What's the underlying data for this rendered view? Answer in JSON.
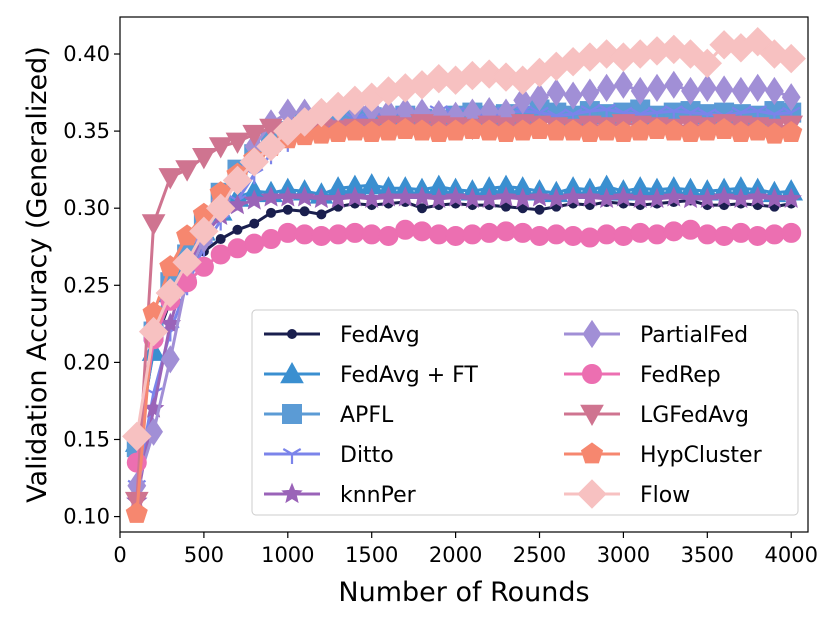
{
  "chart_data": {
    "type": "line",
    "title": "",
    "xlabel": "Number of Rounds",
    "ylabel": "Validation Accuracy (Generalized)",
    "xlim": [
      0,
      4100
    ],
    "ylim": [
      0.09,
      0.424
    ],
    "xticks": [
      0,
      500,
      1000,
      1500,
      2000,
      2500,
      3000,
      3500,
      4000
    ],
    "yticks": [
      0.1,
      0.15,
      0.2,
      0.25,
      0.3,
      0.35,
      0.4
    ],
    "xtick_labels": [
      "0",
      "500",
      "1000",
      "1500",
      "2000",
      "2500",
      "3000",
      "3500",
      "4000"
    ],
    "ytick_labels": [
      "0.10",
      "0.15",
      "0.20",
      "0.25",
      "0.30",
      "0.35",
      "0.40"
    ],
    "legend_position": "lower-right",
    "x": [
      100,
      200,
      300,
      400,
      500,
      600,
      700,
      800,
      900,
      1000,
      1100,
      1200,
      1300,
      1400,
      1500,
      1600,
      1700,
      1800,
      1900,
      2000,
      2100,
      2200,
      2300,
      2400,
      2500,
      2600,
      2700,
      2800,
      2900,
      3000,
      3100,
      3200,
      3300,
      3400,
      3500,
      3600,
      3700,
      3800,
      3900,
      4000
    ],
    "series": [
      {
        "name": "FedAvg",
        "color": "#1a1f4e",
        "marker": "circle",
        "values": [
          0.14,
          0.21,
          0.24,
          0.262,
          0.272,
          0.28,
          0.286,
          0.29,
          0.297,
          0.299,
          0.298,
          0.296,
          0.301,
          0.303,
          0.302,
          0.303,
          0.304,
          0.3,
          0.302,
          0.303,
          0.302,
          0.302,
          0.301,
          0.3,
          0.299,
          0.301,
          0.303,
          0.302,
          0.304,
          0.303,
          0.302,
          0.303,
          0.304,
          0.305,
          0.302,
          0.302,
          0.303,
          0.302,
          0.301,
          0.303
        ]
      },
      {
        "name": "FedAvg + FT",
        "color": "#3a8fd0",
        "marker": "triangle-up",
        "values": [
          0.148,
          0.207,
          0.245,
          0.268,
          0.285,
          0.298,
          0.307,
          0.311,
          0.31,
          0.312,
          0.311,
          0.309,
          0.313,
          0.314,
          0.315,
          0.313,
          0.313,
          0.312,
          0.314,
          0.312,
          0.311,
          0.313,
          0.314,
          0.313,
          0.311,
          0.31,
          0.313,
          0.312,
          0.314,
          0.311,
          0.313,
          0.312,
          0.313,
          0.312,
          0.311,
          0.312,
          0.313,
          0.312,
          0.31,
          0.311
        ]
      },
      {
        "name": "APFL",
        "color": "#5b9bd5",
        "marker": "square",
        "values": [
          0.145,
          0.22,
          0.252,
          0.27,
          0.292,
          0.31,
          0.325,
          0.335,
          0.343,
          0.35,
          0.355,
          0.357,
          0.357,
          0.358,
          0.359,
          0.357,
          0.36,
          0.358,
          0.357,
          0.36,
          0.362,
          0.36,
          0.361,
          0.36,
          0.364,
          0.362,
          0.36,
          0.363,
          0.361,
          0.362,
          0.364,
          0.36,
          0.362,
          0.363,
          0.361,
          0.362,
          0.361,
          0.36,
          0.363,
          0.362
        ]
      },
      {
        "name": "Ditto",
        "color": "#7b84ea",
        "marker": "tri-down",
        "values": [
          0.12,
          0.18,
          0.22,
          0.25,
          0.275,
          0.292,
          0.305,
          0.322,
          0.335,
          0.343,
          0.35,
          0.352,
          0.355,
          0.358,
          0.36,
          0.361,
          0.362,
          0.36,
          0.363,
          0.362,
          0.361,
          0.36,
          0.362,
          0.363,
          0.362,
          0.36,
          0.361,
          0.363,
          0.364,
          0.362,
          0.361,
          0.362,
          0.363,
          0.362,
          0.361,
          0.36,
          0.362,
          0.363,
          0.361,
          0.362
        ]
      },
      {
        "name": "knnPer",
        "color": "#9a63b8",
        "marker": "star",
        "values": [
          0.11,
          0.17,
          0.225,
          0.262,
          0.282,
          0.295,
          0.302,
          0.305,
          0.307,
          0.307,
          0.307,
          0.306,
          0.306,
          0.307,
          0.306,
          0.307,
          0.307,
          0.307,
          0.306,
          0.307,
          0.306,
          0.306,
          0.307,
          0.306,
          0.307,
          0.306,
          0.307,
          0.307,
          0.306,
          0.307,
          0.306,
          0.306,
          0.307,
          0.306,
          0.306,
          0.307,
          0.306,
          0.307,
          0.306,
          0.306
        ]
      },
      {
        "name": "PartialFed",
        "color": "#a18fd6",
        "marker": "diamond",
        "values": [
          0.12,
          0.155,
          0.202,
          0.255,
          0.28,
          0.305,
          0.32,
          0.34,
          0.355,
          0.362,
          0.362,
          0.36,
          0.364,
          0.366,
          0.364,
          0.362,
          0.363,
          0.362,
          0.361,
          0.36,
          0.362,
          0.363,
          0.362,
          0.37,
          0.372,
          0.375,
          0.373,
          0.375,
          0.378,
          0.38,
          0.376,
          0.378,
          0.38,
          0.376,
          0.378,
          0.377,
          0.376,
          0.378,
          0.376,
          0.372
        ]
      },
      {
        "name": "FedRep",
        "color": "#ec6fb1",
        "marker": "circle-large",
        "values": [
          0.135,
          0.215,
          0.24,
          0.252,
          0.262,
          0.27,
          0.274,
          0.277,
          0.28,
          0.284,
          0.283,
          0.282,
          0.283,
          0.284,
          0.283,
          0.282,
          0.286,
          0.285,
          0.283,
          0.282,
          0.283,
          0.284,
          0.285,
          0.284,
          0.282,
          0.283,
          0.282,
          0.281,
          0.283,
          0.282,
          0.284,
          0.283,
          0.285,
          0.286,
          0.283,
          0.282,
          0.284,
          0.282,
          0.283,
          0.284
        ]
      },
      {
        "name": "LGFedAvg",
        "color": "#cf7490",
        "marker": "triangle-down",
        "values": [
          0.11,
          0.29,
          0.32,
          0.325,
          0.333,
          0.34,
          0.343,
          0.348,
          0.352,
          0.35,
          0.353,
          0.352,
          0.351,
          0.352,
          0.352,
          0.354,
          0.353,
          0.355,
          0.354,
          0.353,
          0.352,
          0.354,
          0.353,
          0.355,
          0.354,
          0.353,
          0.352,
          0.354,
          0.353,
          0.355,
          0.354,
          0.353,
          0.352,
          0.354,
          0.353,
          0.355,
          0.354,
          0.353,
          0.352,
          0.354
        ]
      },
      {
        "name": "HypCluster",
        "color": "#f6876f",
        "marker": "pentagon",
        "values": [
          0.102,
          0.232,
          0.262,
          0.282,
          0.296,
          0.31,
          0.322,
          0.332,
          0.34,
          0.345,
          0.347,
          0.348,
          0.349,
          0.35,
          0.349,
          0.35,
          0.351,
          0.35,
          0.349,
          0.35,
          0.351,
          0.35,
          0.349,
          0.35,
          0.351,
          0.35,
          0.35,
          0.349,
          0.35,
          0.349,
          0.35,
          0.351,
          0.35,
          0.349,
          0.35,
          0.351,
          0.349,
          0.35,
          0.348,
          0.349
        ]
      },
      {
        "name": "Flow",
        "color": "#f7c1c1",
        "marker": "diamond-large",
        "values": [
          0.152,
          0.22,
          0.245,
          0.265,
          0.285,
          0.3,
          0.318,
          0.33,
          0.34,
          0.35,
          0.356,
          0.362,
          0.366,
          0.37,
          0.372,
          0.376,
          0.378,
          0.38,
          0.384,
          0.383,
          0.386,
          0.387,
          0.385,
          0.383,
          0.388,
          0.392,
          0.395,
          0.398,
          0.4,
          0.398,
          0.4,
          0.402,
          0.403,
          0.4,
          0.394,
          0.406,
          0.404,
          0.408,
          0.4,
          0.397
        ]
      }
    ]
  }
}
